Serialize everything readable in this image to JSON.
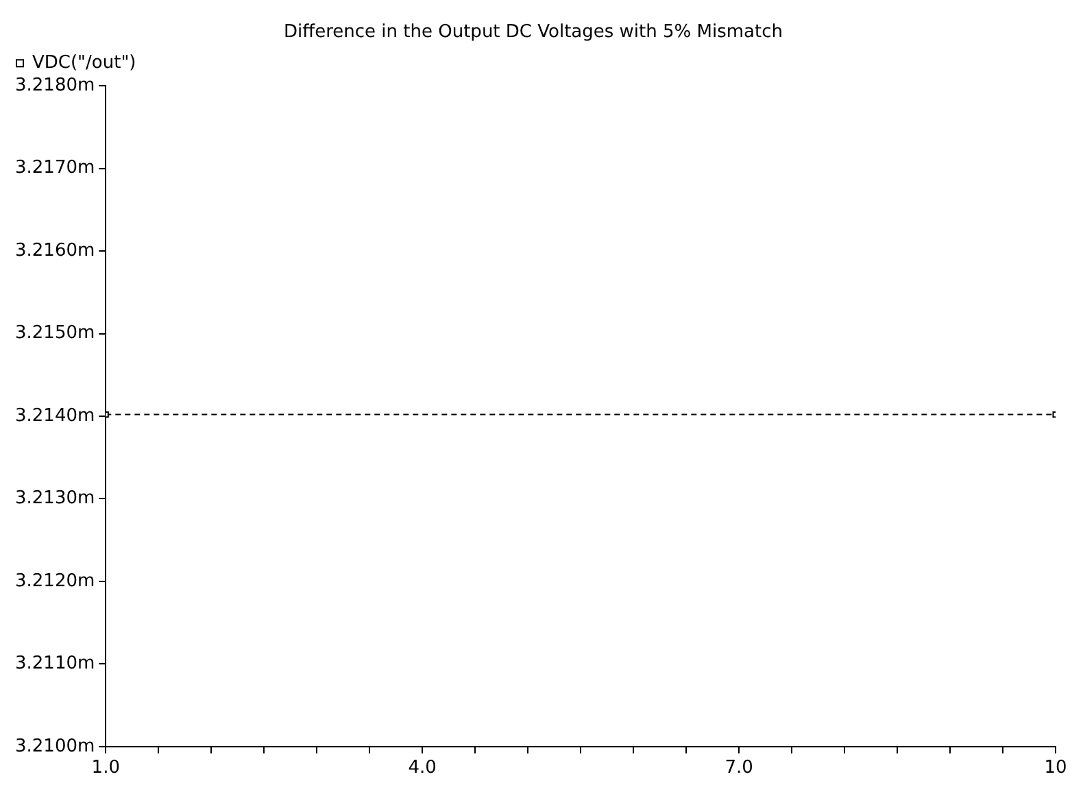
{
  "chart_data": {
    "type": "line",
    "title": "Difference in the Output DC Voltages with 5% Mismatch",
    "x": [
      1,
      10
    ],
    "series": [
      {
        "name": "VDC(\"/out\")",
        "color": "#000000",
        "values": [
          3.21402,
          3.21402
        ]
      }
    ],
    "marker": "square",
    "line_style": "dashed",
    "grid": false,
    "legend": "top left",
    "xlim": [
      1,
      10
    ],
    "xticks": [
      {
        "value": 1,
        "label": "1.0"
      },
      {
        "value": 1.5,
        "label": null
      },
      {
        "value": 2,
        "label": null
      },
      {
        "value": 2.5,
        "label": null
      },
      {
        "value": 3,
        "label": null
      },
      {
        "value": 3.5,
        "label": null
      },
      {
        "value": 4,
        "label": "4.0"
      },
      {
        "value": 4.5,
        "label": null
      },
      {
        "value": 5,
        "label": null
      },
      {
        "value": 5.5,
        "label": null
      },
      {
        "value": 6,
        "label": null
      },
      {
        "value": 6.5,
        "label": null
      },
      {
        "value": 7,
        "label": "7.0"
      },
      {
        "value": 7.5,
        "label": null
      },
      {
        "value": 8,
        "label": null
      },
      {
        "value": 8.5,
        "label": null
      },
      {
        "value": 9,
        "label": null
      },
      {
        "value": 9.5,
        "label": null
      },
      {
        "value": 10,
        "label": "10"
      }
    ],
    "ylim": [
      3.21,
      3.218
    ],
    "yticks": [
      {
        "value": 3.21,
        "label": "3.2100m"
      },
      {
        "value": 3.211,
        "label": "3.2110m"
      },
      {
        "value": 3.212,
        "label": "3.2120m"
      },
      {
        "value": 3.213,
        "label": "3.2130m"
      },
      {
        "value": 3.214,
        "label": "3.2140m"
      },
      {
        "value": 3.215,
        "label": "3.2150m"
      },
      {
        "value": 3.216,
        "label": "3.2160m"
      },
      {
        "value": 3.217,
        "label": "3.2170m"
      },
      {
        "value": 3.218,
        "label": "3.2180m"
      }
    ]
  }
}
